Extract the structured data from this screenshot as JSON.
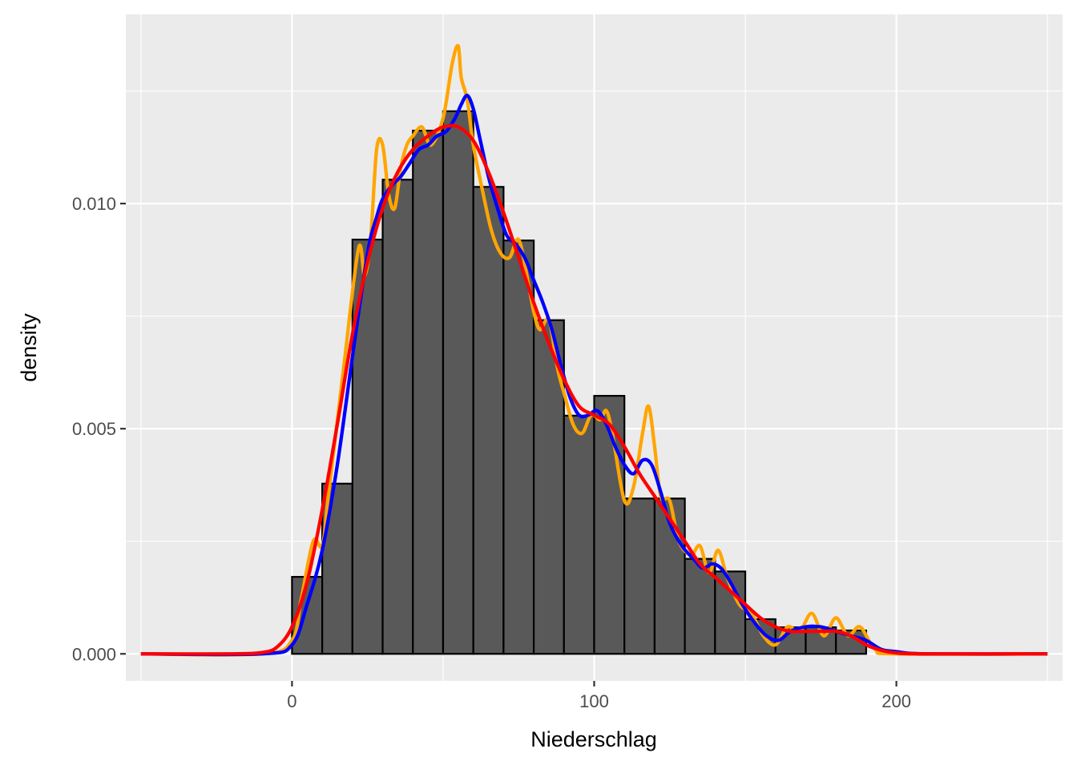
{
  "chart_data": {
    "type": "bar",
    "title": "",
    "xlabel": "Niederschlag",
    "ylabel": "density",
    "xlim": [
      -55,
      255
    ],
    "ylim": [
      -0.0006,
      0.0142
    ],
    "x_ticks": [
      0,
      100,
      200
    ],
    "x_tick_labels": [
      "0",
      "100",
      "200"
    ],
    "y_ticks": [
      0.0,
      0.005,
      0.01
    ],
    "y_tick_labels": [
      "0.000",
      "0.005",
      "0.010"
    ],
    "grid": true,
    "legend": "none",
    "colors": {
      "panel_background": "#ebebeb",
      "grid": "#ffffff",
      "bar_fill": "#595959",
      "bar_outline": "#000000"
    },
    "histogram": {
      "bin_width": 10,
      "bin_left_edges": [
        0,
        10,
        20,
        30,
        40,
        50,
        60,
        70,
        80,
        90,
        100,
        110,
        120,
        130,
        140,
        150,
        160,
        170,
        180
      ],
      "densities": [
        0.00171,
        0.00378,
        0.0092,
        0.01053,
        0.01162,
        0.01205,
        0.01037,
        0.00918,
        0.00741,
        0.00529,
        0.00573,
        0.00345,
        0.00345,
        0.00211,
        0.00183,
        0.00077,
        0.00059,
        0.00059,
        0.00052
      ]
    },
    "series": [
      {
        "color": "#ffa500",
        "x": [
          -50,
          -10,
          0,
          3,
          7,
          10,
          12,
          17,
          22,
          24,
          26,
          28,
          30,
          32,
          34,
          36,
          38,
          40,
          43,
          46,
          50,
          53,
          55,
          56,
          58,
          60,
          63,
          66,
          69,
          72,
          75,
          78,
          80,
          82,
          85,
          88,
          90,
          93,
          96,
          99,
          102,
          104,
          106,
          110,
          113,
          116,
          118,
          120,
          122,
          125,
          128,
          132,
          135,
          138,
          141,
          144,
          148,
          152,
          156,
          160,
          164,
          168,
          172,
          176,
          180,
          184,
          188,
          193,
          200,
          250
        ],
        "y": [
          0,
          0,
          0.0003,
          0.0012,
          0.0025,
          0.0024,
          0.0035,
          0.0063,
          0.009,
          0.0084,
          0.0092,
          0.0112,
          0.0113,
          0.0102,
          0.0099,
          0.0108,
          0.0113,
          0.0115,
          0.0117,
          0.0113,
          0.0119,
          0.0131,
          0.0135,
          0.0128,
          0.0123,
          0.0113,
          0.0103,
          0.0094,
          0.0089,
          0.0088,
          0.0092,
          0.0083,
          0.0076,
          0.0072,
          0.0074,
          0.0063,
          0.0058,
          0.0051,
          0.0049,
          0.0053,
          0.0052,
          0.0054,
          0.0049,
          0.0034,
          0.0037,
          0.0049,
          0.0055,
          0.0046,
          0.0035,
          0.0034,
          0.0025,
          0.0022,
          0.0024,
          0.0018,
          0.0023,
          0.0017,
          0.0011,
          0.0009,
          0.0004,
          0.0002,
          0.0006,
          0.0005,
          0.0009,
          0.0004,
          0.0008,
          0.0004,
          0.0006,
          0.0001,
          0,
          0
        ]
      },
      {
        "color": "#0000ff",
        "x": [
          -50,
          -10,
          0,
          5,
          10,
          15,
          20,
          25,
          28,
          30,
          33,
          36,
          39,
          42,
          45,
          48,
          51,
          54,
          56,
          58,
          60,
          62,
          65,
          68,
          71,
          74,
          77,
          80,
          83,
          86,
          89,
          92,
          95,
          98,
          101,
          104,
          107,
          110,
          113,
          116,
          119,
          122,
          125,
          129,
          133,
          136,
          139,
          142,
          145,
          149,
          153,
          157,
          161,
          165,
          170,
          175,
          180,
          185,
          190,
          195,
          200,
          210,
          250
        ],
        "y": [
          0,
          0,
          0.0002,
          0.0011,
          0.0023,
          0.0042,
          0.0066,
          0.0089,
          0.0097,
          0.0101,
          0.0104,
          0.0106,
          0.0109,
          0.0112,
          0.0113,
          0.0115,
          0.0116,
          0.0119,
          0.0122,
          0.0124,
          0.0121,
          0.0115,
          0.0106,
          0.0099,
          0.0093,
          0.0091,
          0.0088,
          0.0083,
          0.0078,
          0.0072,
          0.0064,
          0.0057,
          0.0053,
          0.0053,
          0.0054,
          0.0051,
          0.0046,
          0.0042,
          0.004,
          0.0043,
          0.0042,
          0.0036,
          0.0029,
          0.0024,
          0.0021,
          0.0019,
          0.002,
          0.0019,
          0.0016,
          0.0011,
          0.0007,
          0.0004,
          0.0003,
          0.0005,
          0.0006,
          0.0006,
          0.0005,
          0.0004,
          0.0003,
          0.0001,
          5e-05,
          0,
          0
        ]
      },
      {
        "color": "#ff0000",
        "x": [
          -50,
          -20,
          -10,
          -5,
          0,
          5,
          10,
          15,
          20,
          25,
          30,
          35,
          40,
          45,
          50,
          55,
          60,
          65,
          70,
          75,
          80,
          85,
          90,
          95,
          100,
          105,
          110,
          115,
          120,
          125,
          130,
          135,
          140,
          145,
          150,
          155,
          160,
          165,
          170,
          175,
          180,
          185,
          190,
          195,
          200,
          210,
          250
        ],
        "y": [
          0,
          0,
          3e-05,
          0.00015,
          0.0006,
          0.0016,
          0.0032,
          0.0051,
          0.0071,
          0.0087,
          0.0099,
          0.0107,
          0.0112,
          0.0115,
          0.0117,
          0.0117,
          0.0114,
          0.0107,
          0.0098,
          0.0088,
          0.0078,
          0.0069,
          0.0061,
          0.0055,
          0.0053,
          0.0051,
          0.0046,
          0.004,
          0.0035,
          0.003,
          0.0025,
          0.002,
          0.0017,
          0.0014,
          0.0011,
          0.0008,
          0.0006,
          0.0005,
          0.0005,
          0.0005,
          0.0005,
          0.0004,
          0.0002,
          8e-05,
          2e-05,
          0,
          0
        ]
      }
    ]
  }
}
